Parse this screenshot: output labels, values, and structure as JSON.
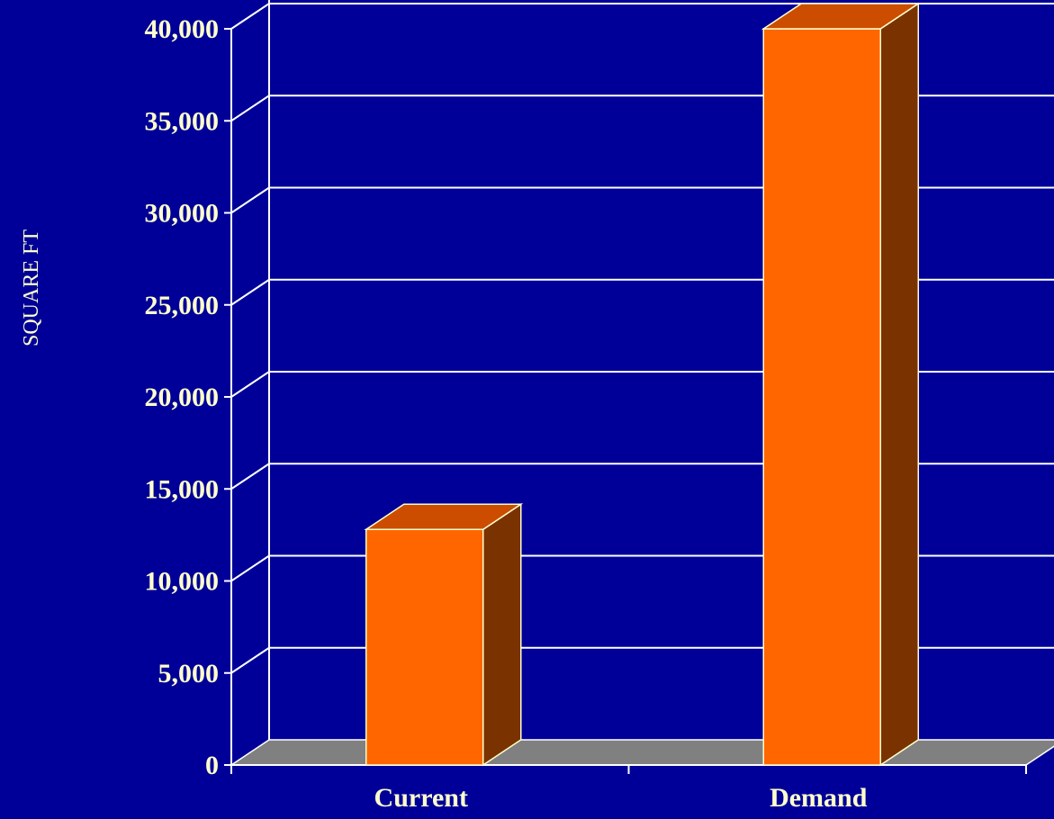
{
  "chart_data": {
    "type": "bar",
    "categories": [
      "Current",
      "Demand"
    ],
    "values": [
      12800,
      40000
    ],
    "ylabel": "SQUARE FT",
    "ylim": [
      0,
      40000
    ],
    "yticks": [
      "0",
      "5,000",
      "10,000",
      "15,000",
      "20,000",
      "25,000",
      "30,000",
      "35,000",
      "40,000"
    ],
    "grid": true,
    "colors": {
      "background": "#000099",
      "bar_front": "#ff6600",
      "bar_side": "#7a3300",
      "bar_top": "#cc4d00",
      "floor": "#808080",
      "lines": "#ffffff",
      "text": "#ffffcc"
    }
  }
}
